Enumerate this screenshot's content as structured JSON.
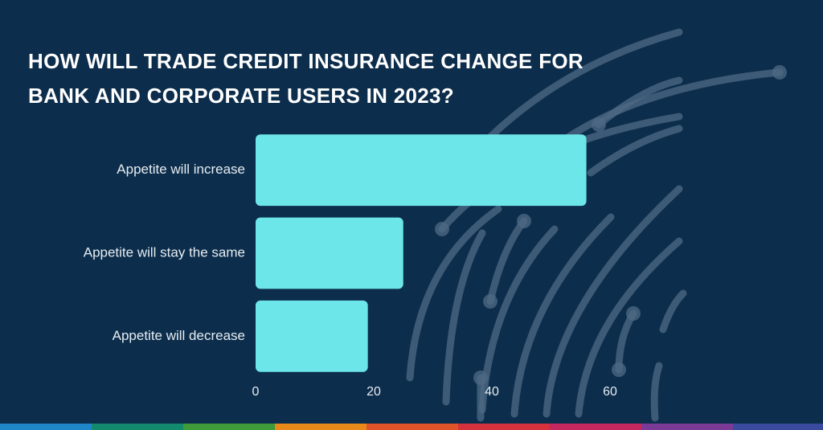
{
  "chart_data": {
    "type": "bar",
    "orientation": "horizontal",
    "title": "HOW WILL TRADE CREDIT INSURANCE CHANGE FOR BANK AND CORPORATE USERS IN 2023?",
    "categories": [
      "Appetite will increase",
      "Appetite will stay the same",
      "Appetite will decrease"
    ],
    "values": [
      56,
      25,
      19
    ],
    "color": "#6de6ea",
    "xlim": [
      0,
      60
    ],
    "xticks": [
      0,
      20,
      40,
      60
    ],
    "grid": false
  }
}
